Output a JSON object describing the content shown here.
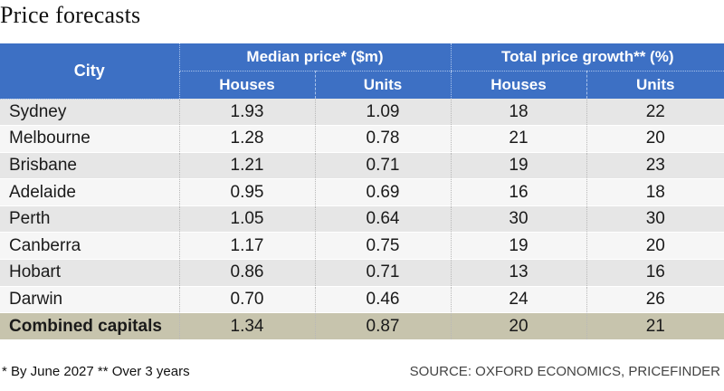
{
  "title": "Price forecasts",
  "header": {
    "city": "City",
    "group1": "Median price* ($m)",
    "group2": "Total price growth** (%)",
    "houses1": "Houses",
    "units1": "Units",
    "houses2": "Houses",
    "units2": "Units"
  },
  "colors": {
    "header_bg": "#3d70c4",
    "row_odd": "#e6e6e6",
    "row_even": "#f6f6f6",
    "total_row": "#c7c4ad"
  },
  "chart_data": {
    "type": "table",
    "title": "Price forecasts",
    "columns": [
      "City",
      "Median price Houses ($m)",
      "Median price Units ($m)",
      "Total price growth Houses (%)",
      "Total price growth Units (%)"
    ],
    "rows": [
      [
        "Sydney",
        "1.93",
        "1.09",
        "18",
        "22"
      ],
      [
        "Melbourne",
        "1.28",
        "0.78",
        "21",
        "20"
      ],
      [
        "Brisbane",
        "1.21",
        "0.71",
        "19",
        "23"
      ],
      [
        "Adelaide",
        "0.95",
        "0.69",
        "16",
        "18"
      ],
      [
        "Perth",
        "1.05",
        "0.64",
        "30",
        "30"
      ],
      [
        "Canberra",
        "1.17",
        "0.75",
        "19",
        "20"
      ],
      [
        "Hobart",
        "0.86",
        "0.71",
        "13",
        "16"
      ],
      [
        "Darwin",
        "0.70",
        "0.46",
        "24",
        "26"
      ],
      [
        "Combined capitals",
        "1.34",
        "0.87",
        "20",
        "21"
      ]
    ]
  },
  "footnote": "* By June 2027  ** Over 3 years",
  "source": "SOURCE: OXFORD ECONOMICS, PRICEFINDER"
}
